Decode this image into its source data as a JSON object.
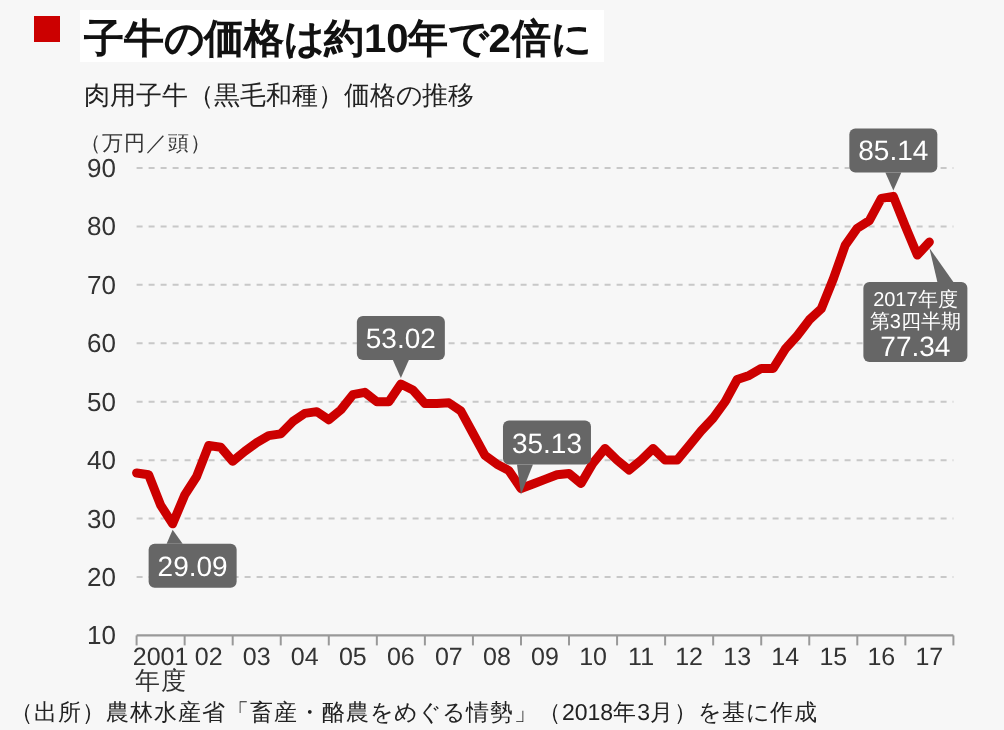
{
  "chart_data": {
    "type": "line",
    "title": "子牛の価格は約10年で2倍に",
    "subtitle": "肉用子牛（黒毛和種）価格の推移",
    "ylabel": "（万円／頭）",
    "categories": [
      null,
      null,
      "2001\n年度",
      null,
      null,
      null,
      "02",
      null,
      null,
      null,
      "03",
      null,
      null,
      null,
      "04",
      null,
      null,
      null,
      "05",
      null,
      null,
      null,
      "06",
      null,
      null,
      null,
      "07",
      null,
      null,
      null,
      "08",
      null,
      null,
      null,
      "09",
      null,
      null,
      null,
      "10",
      null,
      null,
      null,
      "11",
      null,
      null,
      null,
      "12",
      null,
      null,
      null,
      "13",
      null,
      null,
      null,
      "14",
      null,
      null,
      null,
      "15",
      null,
      null,
      null,
      "16",
      null,
      null,
      null,
      "17"
    ],
    "ylim": [
      10,
      90
    ],
    "yticks": [
      10,
      20,
      30,
      40,
      50,
      60,
      70,
      80,
      90
    ],
    "grid": "y",
    "series": [
      {
        "color": "#cc0000",
        "values": [
          37.8,
          37.5,
          32.3,
          29.09,
          34.0,
          37.2,
          42.5,
          42.2,
          39.8,
          41.5,
          43.0,
          44.2,
          44.5,
          46.6,
          48.0,
          48.3,
          46.9,
          48.6,
          51.2,
          51.6,
          50.0,
          50.0,
          53.02,
          52.0,
          49.7,
          49.7,
          49.8,
          48.4,
          44.6,
          40.8,
          39.3,
          38.2,
          35.13,
          35.9,
          36.7,
          37.5,
          37.7,
          36.0,
          39.5,
          42.0,
          40.0,
          38.3,
          40.0,
          42.0,
          40.0,
          40.0,
          42.5,
          45.0,
          47.2,
          50.0,
          53.8,
          54.5,
          55.7,
          55.7,
          59.0,
          61.3,
          64.0,
          65.9,
          71.0,
          76.8,
          79.7,
          81.0,
          84.8,
          85.14,
          80.0,
          75.1,
          77.34
        ]
      }
    ],
    "annotations": [
      "29.09",
      {
        "text": "53.02",
        "y": 53.02
      },
      {
        "text": "35.13",
        "y": 35.13
      },
      {
        "text": "85.14",
        "y": 85.14
      },
      {
        "text": "2017年度第3四半期 77.34",
        "y": 77.34
      },
      "（出所）農林水産省「畜産・酪農をめぐる情勢」（2018年3月）を基に作成"
    ]
  }
}
